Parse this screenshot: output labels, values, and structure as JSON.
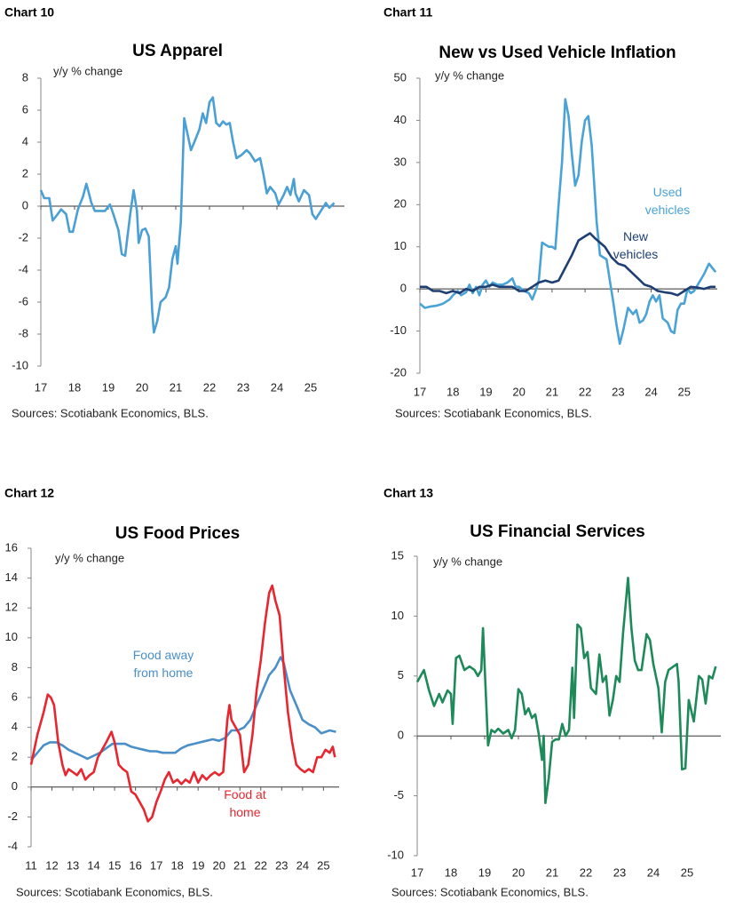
{
  "chart_data": [
    {
      "type": "line",
      "label": "Chart 10",
      "title": "US Apparel",
      "subtitle": "y/y % change",
      "source": "Sources: Scotiabank Economics, BLS.",
      "xlim": [
        17,
        26
      ],
      "xticks": [
        17,
        18,
        19,
        20,
        21,
        22,
        23,
        24,
        25
      ],
      "ylim": [
        -10,
        8
      ],
      "yticks": [
        -10,
        -8,
        -6,
        -4,
        -2,
        0,
        2,
        4,
        6,
        8
      ],
      "series": [
        {
          "color": "#4a9fd4",
          "x": [
            17.0,
            17.1,
            17.25,
            17.35,
            17.5,
            17.6,
            17.75,
            17.85,
            17.95,
            18.1,
            18.25,
            18.35,
            18.5,
            18.6,
            18.75,
            18.9,
            19.05,
            19.15,
            19.3,
            19.4,
            19.5,
            19.65,
            19.75,
            19.85,
            19.9,
            20.0,
            20.1,
            20.2,
            20.3,
            20.35,
            20.45,
            20.55,
            20.7,
            20.8,
            20.9,
            21.0,
            21.05,
            21.15,
            21.25,
            21.35,
            21.45,
            21.55,
            21.7,
            21.8,
            21.9,
            22.0,
            22.1,
            22.2,
            22.3,
            22.4,
            22.5,
            22.6,
            22.7,
            22.8,
            22.95,
            23.1,
            23.2,
            23.35,
            23.5,
            23.6,
            23.7,
            23.8,
            23.95,
            24.05,
            24.2,
            24.3,
            24.4,
            24.5,
            24.55,
            24.65,
            24.8,
            24.95,
            25.05,
            25.15,
            25.3,
            25.45,
            25.55,
            25.7
          ],
          "values": [
            1.0,
            0.5,
            0.5,
            -0.9,
            -0.5,
            -0.2,
            -0.5,
            -1.6,
            -1.6,
            -0.2,
            0.6,
            1.4,
            0.2,
            -0.3,
            -0.3,
            -0.3,
            0.1,
            -0.5,
            -1.5,
            -3.0,
            -3.1,
            -0.5,
            1.0,
            -0.3,
            -2.3,
            -1.5,
            -1.4,
            -1.9,
            -6.5,
            -7.9,
            -7.2,
            -6.0,
            -5.7,
            -5.1,
            -3.3,
            -2.5,
            -3.6,
            -1.0,
            5.5,
            4.5,
            3.5,
            4.0,
            4.8,
            5.8,
            5.2,
            6.5,
            6.8,
            5.2,
            5.0,
            5.3,
            5.1,
            5.2,
            4.0,
            3.0,
            3.2,
            3.5,
            3.3,
            2.8,
            3.0,
            2.0,
            0.8,
            1.2,
            0.8,
            0.1,
            0.7,
            1.2,
            0.7,
            1.7,
            0.8,
            0.3,
            1.0,
            0.7,
            -0.5,
            -0.8,
            -0.3,
            0.2,
            -0.1,
            0.2
          ]
        }
      ]
    },
    {
      "type": "line",
      "label": "Chart 11",
      "title": "New vs Used Vehicle Inflation",
      "subtitle": "y/y % change",
      "source": "Sources: Scotiabank Economics, BLS.",
      "xlim": [
        17,
        26
      ],
      "xticks": [
        17,
        18,
        19,
        20,
        21,
        22,
        23,
        24,
        25
      ],
      "ylim": [
        -20,
        50
      ],
      "yticks": [
        -20,
        -10,
        0,
        10,
        20,
        30,
        40,
        50
      ],
      "series": [
        {
          "name": "Used vehicles",
          "color": "#4aa3d6",
          "x": [
            17.0,
            17.15,
            17.3,
            17.5,
            17.7,
            17.9,
            18.0,
            18.15,
            18.25,
            18.4,
            18.5,
            18.6,
            18.7,
            18.8,
            18.9,
            19.0,
            19.1,
            19.2,
            19.35,
            19.5,
            19.65,
            19.8,
            19.9,
            20.0,
            20.15,
            20.3,
            20.4,
            20.5,
            20.6,
            20.7,
            20.8,
            20.9,
            21.0,
            21.1,
            21.2,
            21.3,
            21.4,
            21.5,
            21.6,
            21.7,
            21.8,
            21.9,
            22.0,
            22.1,
            22.2,
            22.3,
            22.35,
            22.45,
            22.55,
            22.65,
            22.75,
            22.85,
            22.95,
            23.05,
            23.15,
            23.3,
            23.45,
            23.55,
            23.65,
            23.75,
            23.85,
            23.95,
            24.05,
            24.15,
            24.25,
            24.35,
            24.5,
            24.6,
            24.7,
            24.8,
            24.9,
            25.0,
            25.1,
            25.2,
            25.3,
            25.45,
            25.6,
            25.75,
            25.85,
            25.95
          ],
          "values": [
            -3.5,
            -4.5,
            -4.2,
            -4.0,
            -3.5,
            -2.5,
            -1.5,
            -0.5,
            -1.5,
            -0.8,
            1.0,
            -1.0,
            0.5,
            -1.5,
            1.0,
            2.0,
            0.5,
            1.5,
            1.0,
            1.0,
            1.5,
            2.5,
            0.5,
            0.5,
            -0.5,
            -1.0,
            -2.5,
            -0.5,
            2.0,
            11,
            10.5,
            10,
            10,
            9.5,
            20,
            30,
            45,
            41,
            32,
            24.5,
            27,
            35,
            40,
            41,
            34,
            22,
            16,
            8,
            7.5,
            7.0,
            2.0,
            -3,
            -8.5,
            -13,
            -10,
            -4.5,
            -6,
            -5,
            -8,
            -7.5,
            -6,
            -3,
            -1.5,
            -3,
            -1.5,
            -7,
            -8,
            -10,
            -10.5,
            -5,
            -3.5,
            -3.5,
            0,
            -1,
            -0.5,
            1.5,
            3.5,
            6.0,
            5.0,
            4.0
          ]
        },
        {
          "name": "New vehicles",
          "color": "#1f3f73",
          "x": [
            17.0,
            17.2,
            17.4,
            17.6,
            17.8,
            18.0,
            18.2,
            18.4,
            18.6,
            18.8,
            19.0,
            19.2,
            19.4,
            19.6,
            19.8,
            20.0,
            20.2,
            20.4,
            20.6,
            20.8,
            21.0,
            21.2,
            21.4,
            21.6,
            21.8,
            22.0,
            22.15,
            22.3,
            22.45,
            22.6,
            22.8,
            23.0,
            23.2,
            23.4,
            23.6,
            23.8,
            24.0,
            24.2,
            24.4,
            24.6,
            24.8,
            25.0,
            25.2,
            25.4,
            25.6,
            25.8,
            25.95
          ],
          "values": [
            0.5,
            0.5,
            -0.5,
            -0.5,
            -1.0,
            -0.5,
            -1.0,
            0,
            -0.5,
            0.5,
            0.5,
            1.0,
            0.5,
            0.5,
            0.5,
            -0.5,
            -0.5,
            0.5,
            1.5,
            2.0,
            1.5,
            2.0,
            5.0,
            8.0,
            11.5,
            12.5,
            13.2,
            12.0,
            11.0,
            10.0,
            7.5,
            6.0,
            5.5,
            4.0,
            2.5,
            1.0,
            0.5,
            -0.5,
            -0.8,
            -1.0,
            -1.5,
            -0.5,
            0.5,
            0.3,
            0.0,
            0.5,
            0.5
          ]
        }
      ]
    },
    {
      "type": "line",
      "label": "Chart 12",
      "title": "US Food Prices",
      "subtitle": "y/y % change",
      "source": "Sources: Scotiabank Economics, BLS.",
      "xlim": [
        11,
        25.75
      ],
      "xticks": [
        11,
        12,
        13,
        14,
        15,
        16,
        17,
        18,
        19,
        20,
        21,
        22,
        23,
        24,
        25
      ],
      "ylim": [
        -4,
        16
      ],
      "yticks": [
        -4,
        -2,
        0,
        2,
        4,
        6,
        8,
        10,
        12,
        14,
        16
      ],
      "series": [
        {
          "name": "Food away from home",
          "color": "#4a8fc8",
          "x": [
            11.0,
            11.3,
            11.6,
            11.9,
            12.2,
            12.5,
            12.8,
            13.1,
            13.4,
            13.7,
            14.0,
            14.3,
            14.6,
            14.9,
            15.2,
            15.5,
            15.8,
            16.1,
            16.4,
            16.7,
            17.0,
            17.3,
            17.6,
            17.9,
            18.2,
            18.5,
            18.8,
            19.1,
            19.4,
            19.7,
            20.0,
            20.3,
            20.6,
            20.9,
            21.2,
            21.5,
            21.8,
            22.1,
            22.4,
            22.7,
            22.95,
            23.1,
            23.4,
            23.7,
            24.0,
            24.3,
            24.6,
            24.9,
            25.1,
            25.3,
            25.6
          ],
          "values": [
            1.8,
            2.3,
            2.8,
            3.0,
            3.0,
            2.8,
            2.5,
            2.3,
            2.1,
            1.9,
            2.1,
            2.3,
            2.6,
            2.9,
            2.9,
            2.9,
            2.7,
            2.6,
            2.5,
            2.4,
            2.4,
            2.3,
            2.3,
            2.3,
            2.6,
            2.8,
            2.9,
            3.0,
            3.1,
            3.2,
            3.1,
            3.3,
            3.8,
            3.8,
            4.0,
            4.5,
            5.5,
            6.5,
            7.5,
            8.0,
            8.7,
            8.3,
            6.5,
            5.5,
            4.5,
            4.2,
            4.0,
            3.6,
            3.7,
            3.8,
            3.7
          ]
        },
        {
          "name": "Food at home",
          "color": "#e8262f",
          "x": [
            11.0,
            11.3,
            11.6,
            11.8,
            11.95,
            12.1,
            12.3,
            12.5,
            12.65,
            12.8,
            13.0,
            13.2,
            13.4,
            13.6,
            13.8,
            14.0,
            14.2,
            14.4,
            14.6,
            14.85,
            15.0,
            15.2,
            15.4,
            15.6,
            15.8,
            16.0,
            16.2,
            16.4,
            16.6,
            16.8,
            17.0,
            17.2,
            17.4,
            17.6,
            17.8,
            18.0,
            18.2,
            18.4,
            18.6,
            18.8,
            19.0,
            19.2,
            19.4,
            19.6,
            19.8,
            20.0,
            20.2,
            20.4,
            20.5,
            20.6,
            20.8,
            21.0,
            21.2,
            21.4,
            21.6,
            21.8,
            22.0,
            22.2,
            22.4,
            22.55,
            22.7,
            22.9,
            23.1,
            23.3,
            23.5,
            23.7,
            23.9,
            24.1,
            24.3,
            24.5,
            24.7,
            24.9,
            25.1,
            25.3,
            25.45,
            25.55
          ],
          "values": [
            1.5,
            3.5,
            5.0,
            6.2,
            6.0,
            5.5,
            3.0,
            1.5,
            0.8,
            1.2,
            1.0,
            0.8,
            1.2,
            0.5,
            0.8,
            1.0,
            2.0,
            2.5,
            3.0,
            3.7,
            3.0,
            1.5,
            1.2,
            1.0,
            -0.3,
            -0.5,
            -1.0,
            -1.5,
            -2.3,
            -2.0,
            -1.0,
            -0.3,
            0.5,
            1.0,
            0.3,
            0.5,
            0.2,
            0.5,
            0.3,
            1.0,
            0.3,
            0.8,
            0.5,
            0.8,
            1.0,
            0.8,
            1.0,
            4.5,
            5.5,
            4.5,
            4.0,
            3.5,
            1.0,
            1.5,
            3.5,
            6.5,
            8.5,
            11.0,
            13.0,
            13.5,
            12.5,
            11.5,
            8.0,
            5.0,
            3.0,
            1.5,
            1.2,
            1.0,
            1.2,
            1.0,
            2.0,
            2.0,
            2.5,
            2.3,
            2.7,
            2.0
          ]
        }
      ]
    },
    {
      "type": "line",
      "label": "Chart 13",
      "title": "US Financial Services",
      "subtitle": "y/y % change",
      "source": "Sources: Scotiabank Economics, BLS.",
      "xlim": [
        17,
        26
      ],
      "xticks": [
        17,
        18,
        19,
        20,
        21,
        22,
        23,
        24,
        25
      ],
      "ylim": [
        -10,
        15
      ],
      "yticks": [
        -10,
        -5,
        0,
        5,
        10,
        15
      ],
      "series": [
        {
          "color": "#1e8a5a",
          "x": [
            17.0,
            17.1,
            17.2,
            17.35,
            17.5,
            17.65,
            17.75,
            17.9,
            18.0,
            18.05,
            18.15,
            18.25,
            18.4,
            18.55,
            18.7,
            18.8,
            18.9,
            18.95,
            19.05,
            19.1,
            19.2,
            19.3,
            19.4,
            19.55,
            19.7,
            19.8,
            19.9,
            20.0,
            20.1,
            20.2,
            20.3,
            20.4,
            20.5,
            20.6,
            20.7,
            20.75,
            20.8,
            20.9,
            21.0,
            21.1,
            21.2,
            21.3,
            21.4,
            21.5,
            21.6,
            21.65,
            21.75,
            21.85,
            21.95,
            22.05,
            22.15,
            22.3,
            22.4,
            22.5,
            22.6,
            22.7,
            22.8,
            22.9,
            23.0,
            23.1,
            23.25,
            23.35,
            23.45,
            23.55,
            23.65,
            23.8,
            23.9,
            24.0,
            24.15,
            24.25,
            24.35,
            24.45,
            24.6,
            24.7,
            24.75,
            24.85,
            24.95,
            25.05,
            25.2,
            25.35,
            25.45,
            25.55,
            25.65,
            25.75,
            25.85
          ],
          "values": [
            4.5,
            5.0,
            5.5,
            3.8,
            2.5,
            3.5,
            2.8,
            3.8,
            3.5,
            1.0,
            6.5,
            6.7,
            5.5,
            5.8,
            5.5,
            5.0,
            5.5,
            9.0,
            2.5,
            -0.8,
            0.5,
            0.3,
            0.6,
            0.2,
            0.5,
            -0.2,
            0.5,
            3.9,
            3.5,
            1.8,
            2.3,
            1.5,
            1.8,
            0.2,
            -2.0,
            0.0,
            -5.6,
            -3.5,
            -0.5,
            -0.3,
            -0.3,
            1.0,
            0.0,
            0.5,
            5.7,
            1.5,
            9.3,
            9.0,
            6.5,
            7.0,
            4.0,
            3.5,
            6.8,
            4.5,
            5.0,
            1.7,
            3.0,
            5.0,
            4.5,
            8.5,
            13.2,
            9.0,
            6.3,
            5.5,
            5.5,
            8.5,
            8.0,
            6.0,
            4.0,
            0.3,
            4.5,
            5.5,
            5.8,
            6.0,
            4.5,
            -2.8,
            -2.7,
            3.0,
            1.2,
            5.0,
            4.7,
            2.7,
            5.0,
            4.8,
            5.8
          ]
        }
      ]
    }
  ]
}
